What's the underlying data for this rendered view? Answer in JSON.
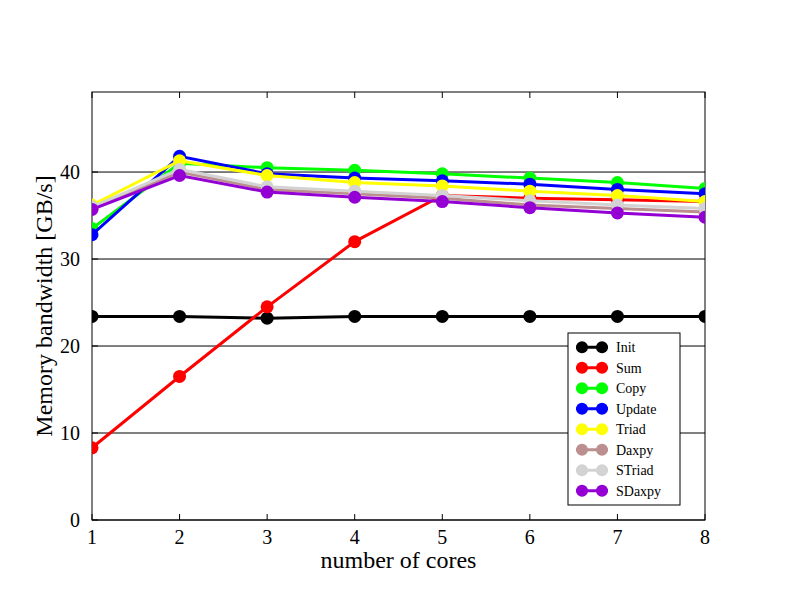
{
  "chart_data": {
    "type": "line",
    "x_label": "number of cores",
    "y_label": "Memory bandwidth [GB/s]",
    "x": [
      1,
      2,
      3,
      4,
      5,
      6,
      7,
      8
    ],
    "xlim": [
      1,
      8
    ],
    "xticks": [
      1,
      2,
      3,
      4,
      5,
      6,
      7,
      8
    ],
    "ylim": [
      0,
      49.2
    ],
    "yticks": [
      0,
      10,
      20,
      30,
      40
    ],
    "grid": true,
    "legend": "lower right",
    "marker": "circle",
    "series": [
      {
        "name": "Init",
        "color": "#000000",
        "values": [
          23.4,
          23.4,
          23.2,
          23.4,
          23.4,
          23.4,
          23.4,
          23.4
        ]
      },
      {
        "name": "Sum",
        "color": "#ff0000",
        "values": [
          8.3,
          16.5,
          24.5,
          32.0,
          37.3,
          37.0,
          36.8,
          36.6
        ]
      },
      {
        "name": "Copy",
        "color": "#00ff00",
        "values": [
          33.5,
          41.0,
          40.5,
          40.2,
          39.8,
          39.3,
          38.8,
          38.1
        ]
      },
      {
        "name": "Update",
        "color": "#0000ff",
        "values": [
          32.8,
          41.8,
          39.8,
          39.3,
          39.0,
          38.6,
          38.0,
          37.5
        ]
      },
      {
        "name": "Triad",
        "color": "#ffff00",
        "values": [
          36.2,
          41.3,
          39.6,
          38.8,
          38.4,
          37.8,
          37.3,
          36.6
        ]
      },
      {
        "name": "Daxpy",
        "color": "#bc8f8f",
        "values": [
          35.8,
          40.0,
          38.0,
          37.5,
          37.0,
          36.2,
          35.8,
          35.4
        ]
      },
      {
        "name": "STriad",
        "color": "#d3d3d3",
        "values": [
          36.0,
          40.3,
          38.3,
          37.8,
          37.3,
          36.7,
          36.2,
          35.8
        ]
      },
      {
        "name": "SDaxpy",
        "color": "#9400d3",
        "values": [
          35.7,
          39.6,
          37.7,
          37.1,
          36.6,
          35.9,
          35.3,
          34.8
        ]
      }
    ]
  }
}
